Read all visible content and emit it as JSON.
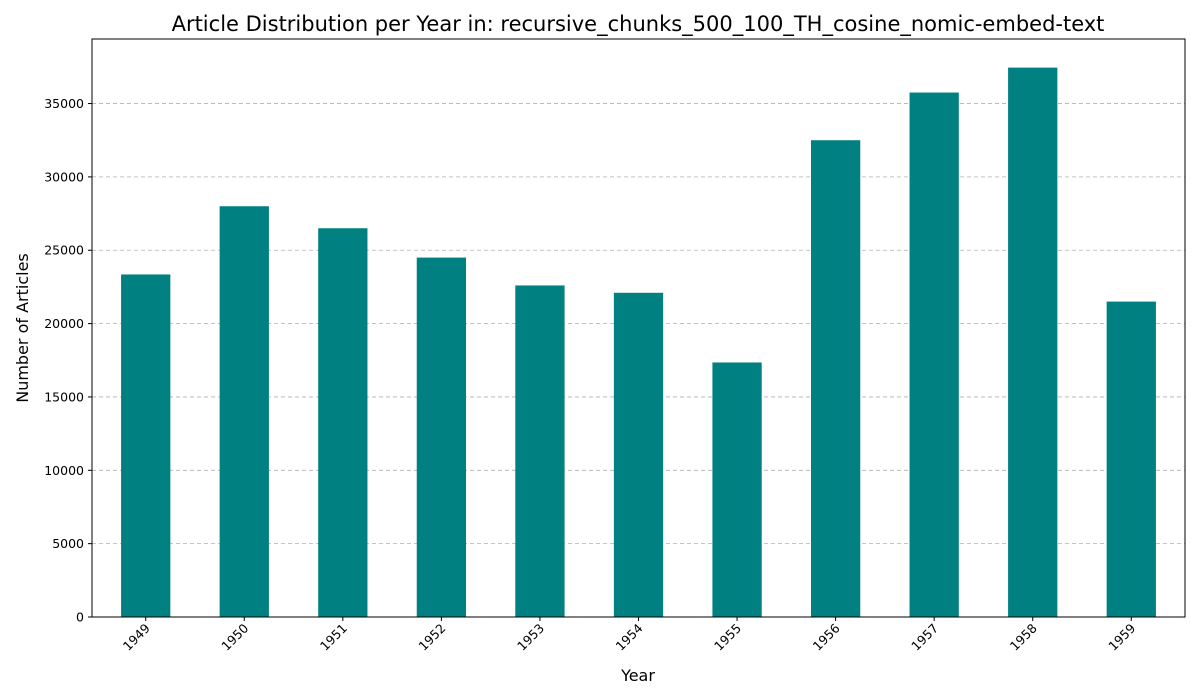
{
  "chart_data": {
    "type": "bar",
    "title": "Article Distribution per Year in: recursive_chunks_500_100_TH_cosine_nomic-embed-text",
    "xlabel": "Year",
    "ylabel": "Number of Articles",
    "categories": [
      "1949",
      "1950",
      "1951",
      "1952",
      "1953",
      "1954",
      "1955",
      "1956",
      "1957",
      "1958",
      "1959"
    ],
    "values": [
      23350,
      28000,
      26500,
      24500,
      22600,
      22100,
      17350,
      32500,
      35750,
      37450,
      21500
    ],
    "ylim": [
      0,
      39400
    ],
    "yticks": [
      0,
      5000,
      10000,
      15000,
      20000,
      25000,
      30000,
      35000
    ],
    "xtick_rotation": "45 degrees",
    "grid": "y-axis, dashed",
    "legend": "none",
    "bar_color": "#008080"
  }
}
